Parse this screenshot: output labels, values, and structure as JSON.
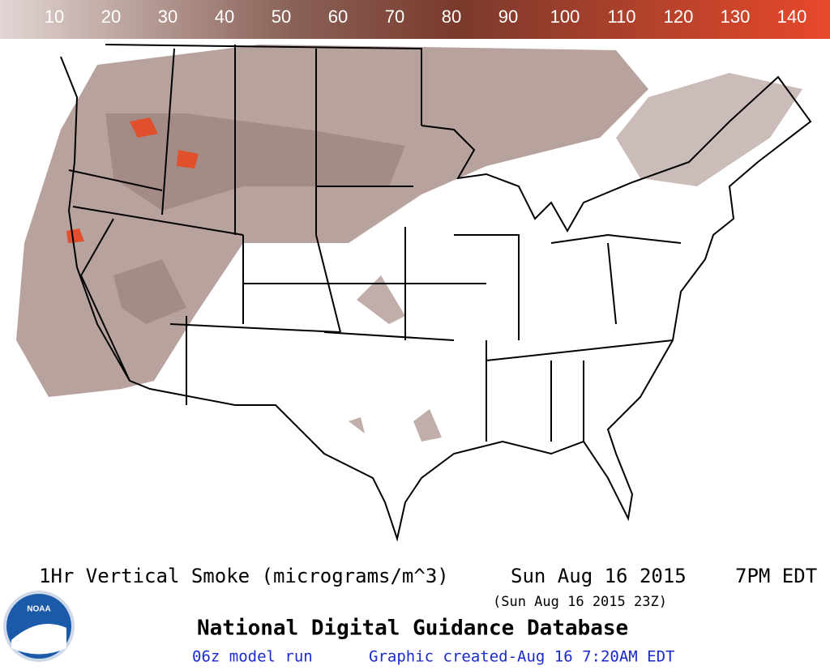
{
  "legend": {
    "labels": [
      10,
      20,
      30,
      40,
      50,
      60,
      70,
      80,
      90,
      100,
      110,
      120,
      130,
      140
    ]
  },
  "caption": {
    "product": "1Hr Vertical Smoke (micrograms/m^3)",
    "date": "Sun Aug 16 2015",
    "time": "7PM EDT",
    "utc": "(Sun Aug 16 2015 23Z)",
    "database": "National Digital Guidance Database",
    "model_run": "06z model run",
    "created": "Graphic created-Aug 16  7:20AM EDT"
  },
  "logo": {
    "text": "NOAA"
  }
}
